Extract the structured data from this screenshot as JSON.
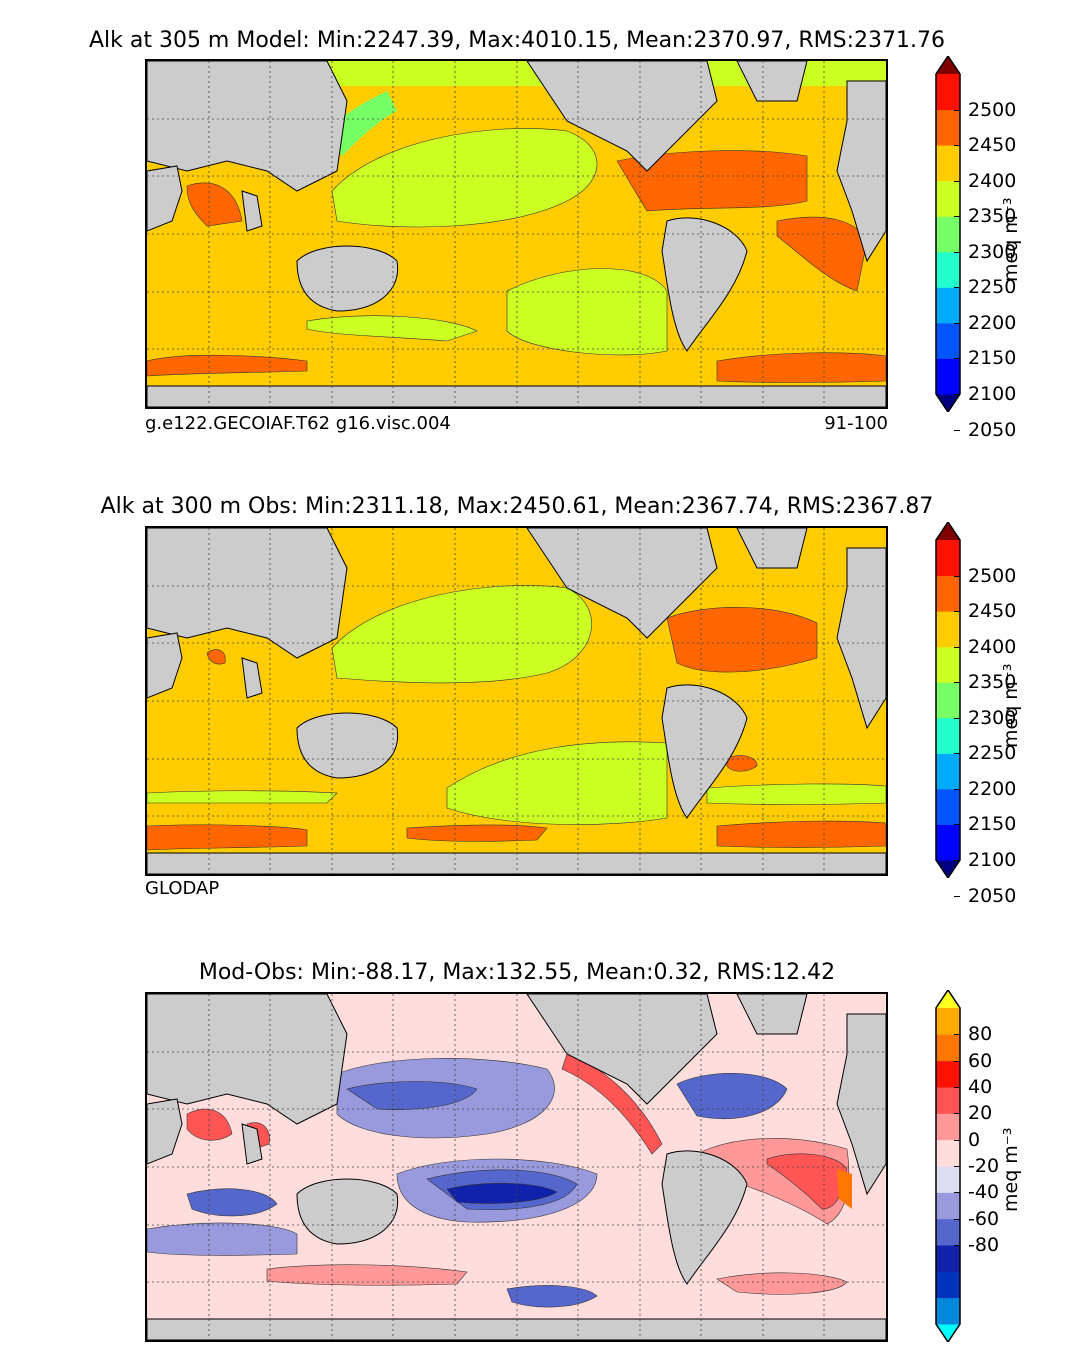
{
  "panels": [
    {
      "title": "Alk at 305 m Model: Min:2247.39, Max:4010.15, Mean:2370.97, RMS:2371.76",
      "left_caption": "g.e122.GECOIAF.T62 g16.visc.004",
      "right_caption": "91-100",
      "colorbar": {
        "ticks": [
          "2500",
          "2450",
          "2400",
          "2350",
          "2300",
          "2250",
          "2200",
          "2150",
          "2100",
          "2050"
        ],
        "colors": [
          "#000080",
          "#0000ff",
          "#0055ff",
          "#00aaff",
          "#22ffcc",
          "#77ff66",
          "#ccff22",
          "#ffcc00",
          "#ff6600",
          "#ff1100",
          "#800000"
        ],
        "unit": "meq m⁻³"
      }
    },
    {
      "title": "Alk at 300 m Obs: Min:2311.18, Max:2450.61, Mean:2367.74, RMS:2367.87",
      "left_caption": "GLODAP",
      "right_caption": "",
      "colorbar": {
        "ticks": [
          "2500",
          "2450",
          "2400",
          "2350",
          "2300",
          "2250",
          "2200",
          "2150",
          "2100",
          "2050"
        ],
        "colors": [
          "#000080",
          "#0000ff",
          "#0055ff",
          "#00aaff",
          "#22ffcc",
          "#77ff66",
          "#ccff22",
          "#ffcc00",
          "#ff6600",
          "#ff1100",
          "#800000"
        ],
        "unit": "meq m⁻³"
      }
    },
    {
      "title": "Mod-Obs: Min:-88.17, Max:132.55, Mean:0.32, RMS:12.42",
      "left_caption": "",
      "right_caption": "",
      "colorbar": {
        "ticks": [
          "80",
          "60",
          "40",
          "20",
          "0",
          "-20",
          "-40",
          "-60",
          "-80"
        ],
        "colors": [
          "#00ffff",
          "#0088dd",
          "#0033bb",
          "#1122aa",
          "#5566cc",
          "#9999dd",
          "#ddddf0",
          "#ffdddd",
          "#ff9999",
          "#ff5555",
          "#ff1100",
          "#ff7700",
          "#ffaa00",
          "#ffff22"
        ],
        "unit": "meq m⁻³"
      }
    }
  ],
  "chart_data": [
    {
      "type": "heatmap",
      "title": "Alk at 305 m Model: Min:2247.39, Max:4010.15, Mean:2370.97, RMS:2371.76",
      "stats": {
        "min": 2247.39,
        "max": 4010.15,
        "mean": 2370.97,
        "rms": 2371.76
      },
      "depth_m": 305,
      "levels": [
        2050,
        2100,
        2150,
        2200,
        2250,
        2300,
        2350,
        2400,
        2450,
        2500
      ],
      "colorbar_unit": "meq m⁻³",
      "extend": "both",
      "grid": true
    },
    {
      "type": "heatmap",
      "title": "Alk at 300 m Obs: Min:2311.18, Max:2450.61, Mean:2367.74, RMS:2367.87",
      "stats": {
        "min": 2311.18,
        "max": 2450.61,
        "mean": 2367.74,
        "rms": 2367.87
      },
      "depth_m": 300,
      "levels": [
        2050,
        2100,
        2150,
        2200,
        2250,
        2300,
        2350,
        2400,
        2450,
        2500
      ],
      "colorbar_unit": "meq m⁻³",
      "extend": "both",
      "grid": true
    },
    {
      "type": "heatmap",
      "title": "Mod-Obs: Min:-88.17, Max:132.55, Mean:0.32, RMS:12.42",
      "stats": {
        "min": -88.17,
        "max": 132.55,
        "mean": 0.32,
        "rms": 12.42
      },
      "levels": [
        -80,
        -60,
        -40,
        -20,
        0,
        20,
        40,
        60,
        80
      ],
      "colorbar_unit": "meq m⁻³",
      "extend": "both",
      "grid": true
    }
  ]
}
